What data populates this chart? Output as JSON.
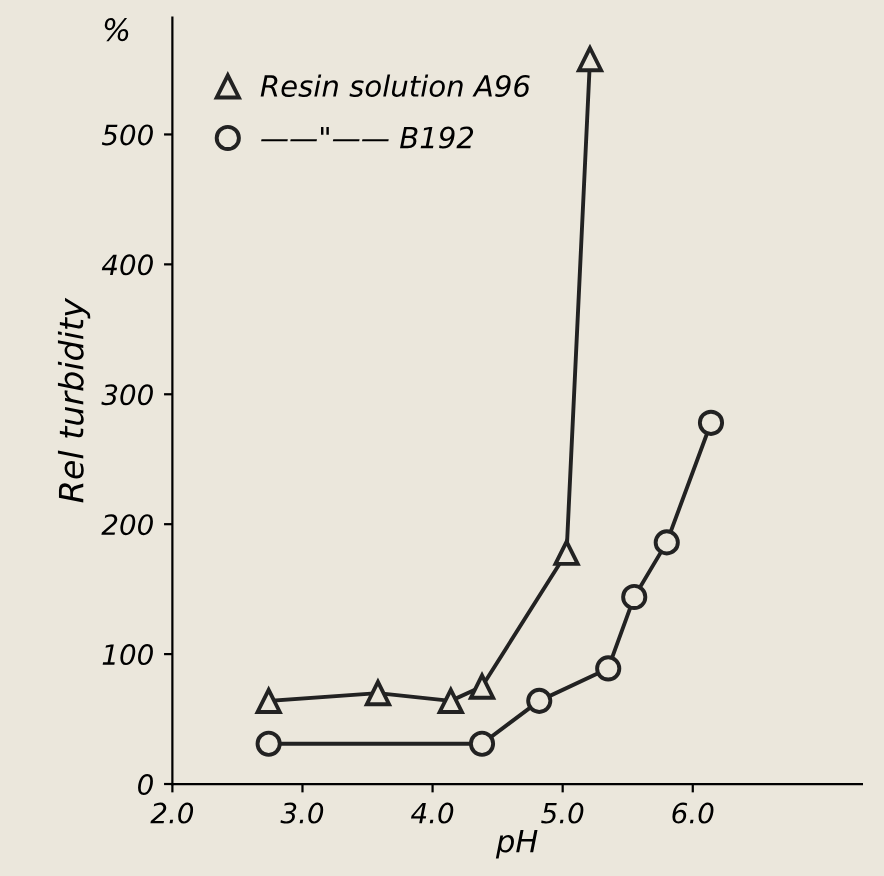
{
  "chart_data": {
    "type": "line",
    "xlabel": "pH",
    "ylabel": "Rel turbidity",
    "annotations": [
      "%"
    ],
    "series": [
      {
        "name": "Resin solution A96",
        "color": "#222222",
        "marker": "triangle",
        "x": [
          2.74,
          3.58,
          4.14,
          4.38,
          5.03,
          5.21
        ],
        "values": [
          64,
          70,
          64,
          75,
          178,
          558
        ]
      },
      {
        "name": "——\"—— B192",
        "color": "#222222",
        "marker": "circle",
        "x": [
          2.74,
          4.38,
          4.82,
          5.35,
          5.55,
          5.8,
          6.14
        ],
        "values": [
          31,
          31,
          64,
          89,
          144,
          186,
          278
        ]
      }
    ],
    "xlim": [
      2.0,
      7.3
    ],
    "ylim": [
      0,
      590
    ],
    "xticks": [
      {
        "value": 2.0,
        "label": "2.0"
      },
      {
        "value": 3.0,
        "label": "3.0"
      },
      {
        "value": 4.0,
        "label": "4.0"
      },
      {
        "value": 5.0,
        "label": "5.0"
      },
      {
        "value": 6.0,
        "label": "6.0"
      }
    ],
    "yticks": [
      0,
      100,
      200,
      300,
      400,
      500
    ],
    "legend": "top left",
    "grid": false,
    "line_style": "solid"
  }
}
